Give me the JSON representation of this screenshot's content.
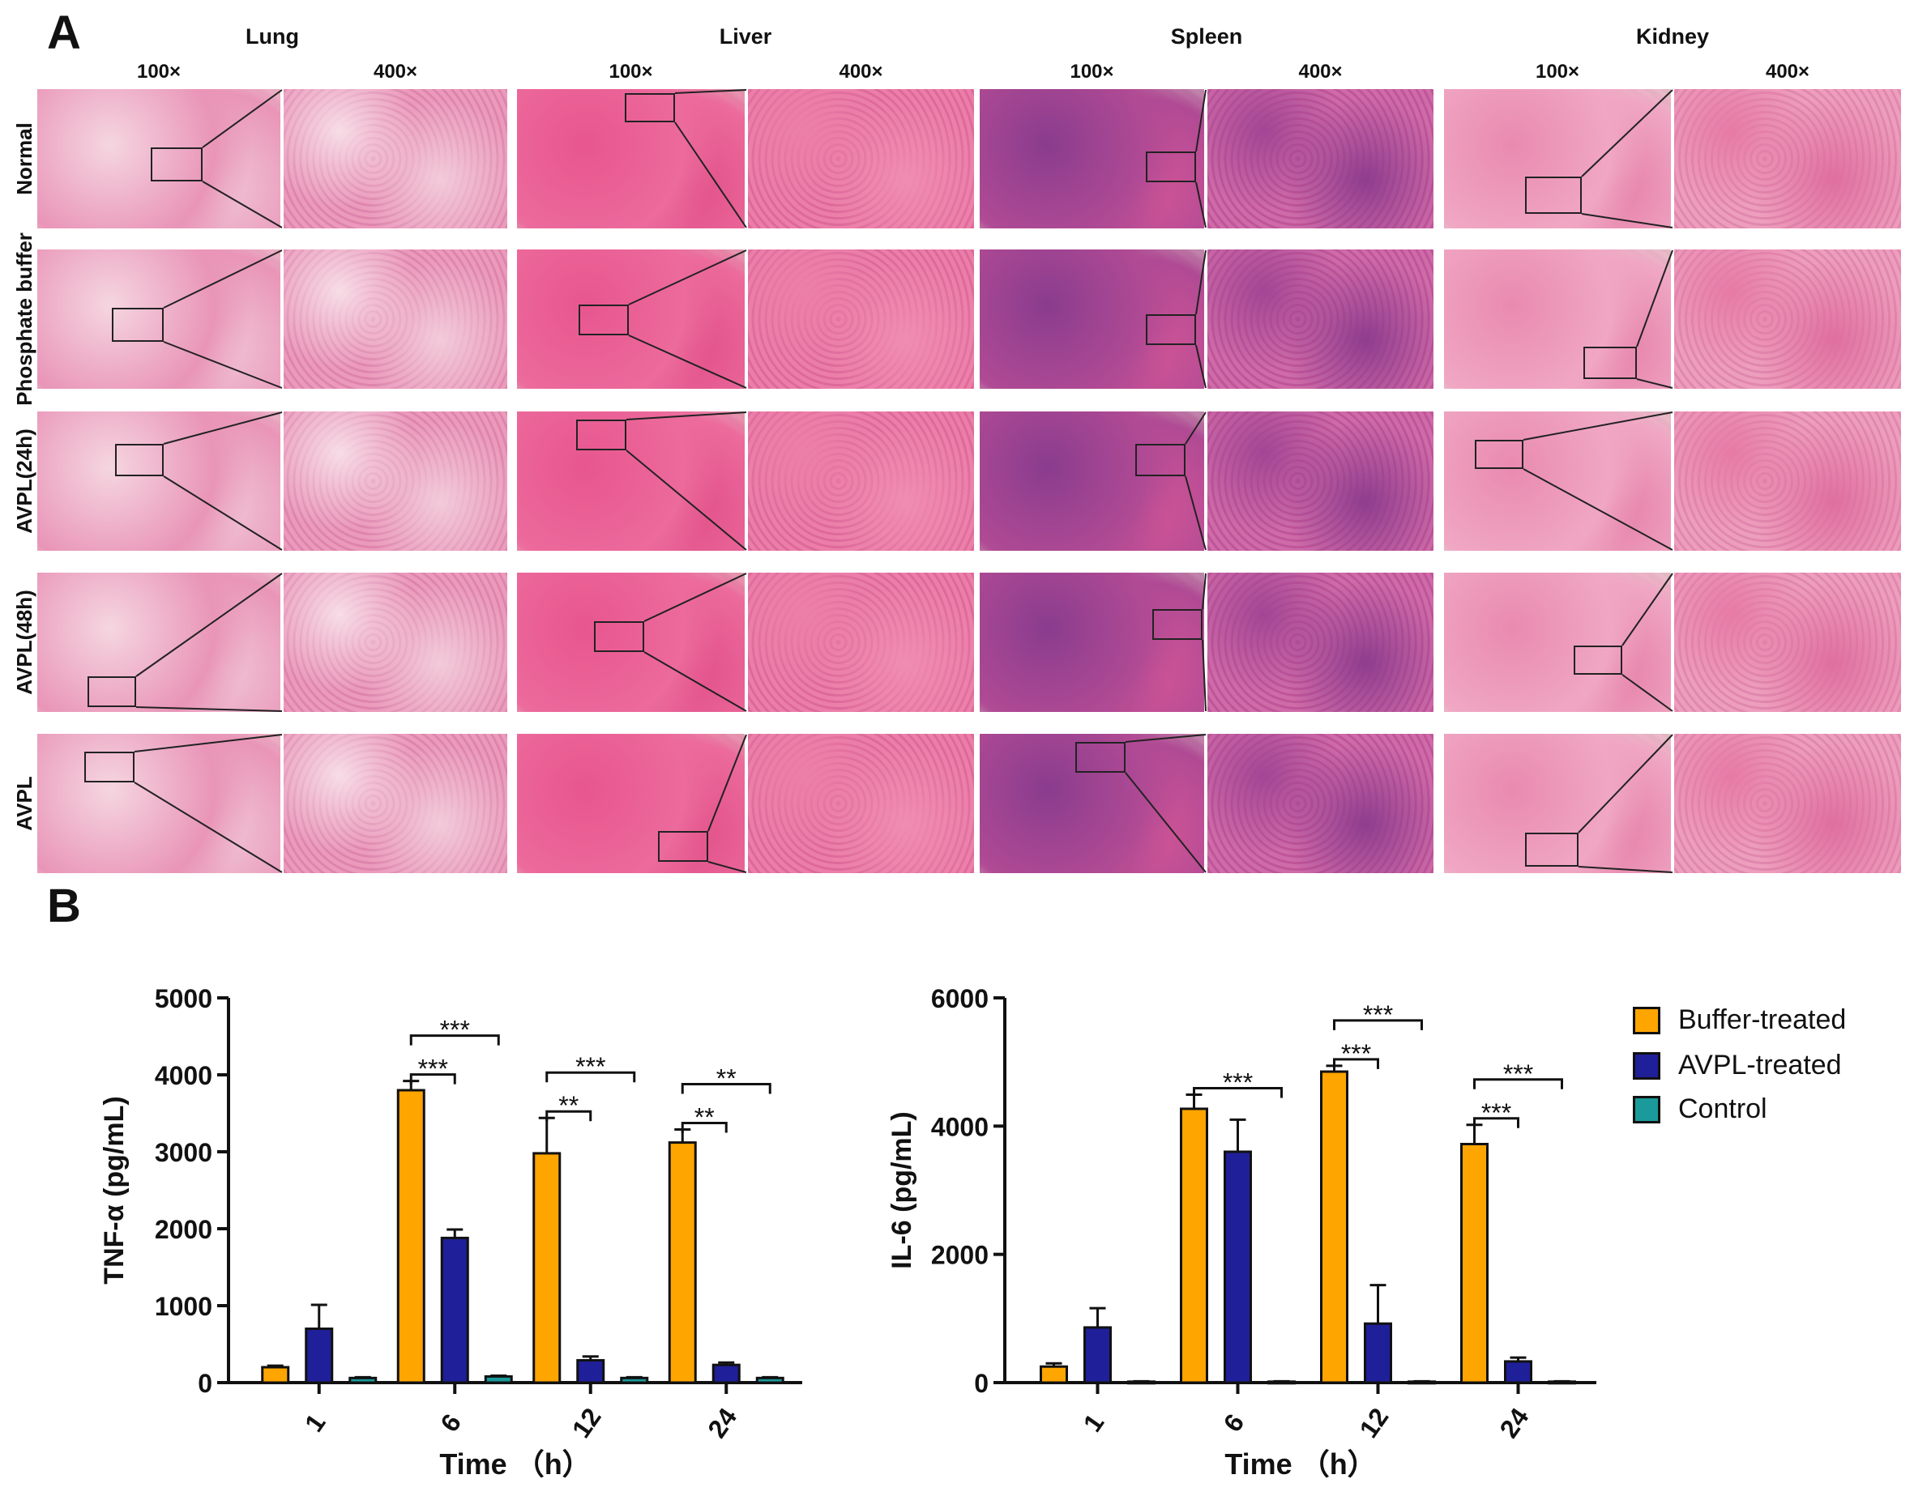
{
  "panel_a": {
    "letter": "A",
    "organs": [
      {
        "name": "Lung",
        "mag_low": "100×",
        "mag_high": "400×"
      },
      {
        "name": "Liver",
        "mag_low": "100×",
        "mag_high": "400×"
      },
      {
        "name": "Spleen",
        "mag_low": "100×",
        "mag_high": "400×"
      },
      {
        "name": "Kidney",
        "mag_low": "100×",
        "mag_high": "400×"
      }
    ],
    "rows": [
      "Normal",
      "Phosphate buffer",
      "AVPL(24h)",
      "AVPL(48h)",
      "AVPL"
    ]
  },
  "panel_b": {
    "letter": "B",
    "legend": [
      {
        "name": "Buffer-treated",
        "color": "#FFA500"
      },
      {
        "name": "AVPL-treated",
        "color": "#1F1F99"
      },
      {
        "name": "Control",
        "color": "#1A9A9A"
      }
    ]
  },
  "chart_data": [
    {
      "type": "bar",
      "ylabel": "TNF-α (pg/mL)",
      "xlabel": "Time （h）",
      "categories": [
        "1",
        "6",
        "12",
        "24"
      ],
      "ylim": [
        0,
        5000
      ],
      "yticks": [
        "0",
        "1000",
        "2000",
        "3000",
        "4000",
        "5000"
      ],
      "series": [
        {
          "name": "Buffer-treated",
          "values": [
            200,
            3800,
            2980,
            3120
          ],
          "errors": [
            20,
            120,
            460,
            170
          ]
        },
        {
          "name": "AVPL-treated",
          "values": [
            700,
            1880,
            290,
            230
          ],
          "errors": [
            310,
            110,
            50,
            30
          ]
        },
        {
          "name": "Control",
          "values": [
            60,
            80,
            60,
            60
          ],
          "errors": [
            10,
            10,
            10,
            10
          ]
        }
      ],
      "significance": [
        {
          "category": "6",
          "from": 0,
          "to": 1,
          "label": "***",
          "level": 1
        },
        {
          "category": "6",
          "from": 0,
          "to": 2,
          "label": "***",
          "level": 2
        },
        {
          "category": "12",
          "from": 0,
          "to": 1,
          "label": "**",
          "level": 1
        },
        {
          "category": "12",
          "from": 0,
          "to": 2,
          "label": "***",
          "level": 2
        },
        {
          "category": "24",
          "from": 0,
          "to": 1,
          "label": "**",
          "level": 1
        },
        {
          "category": "24",
          "from": 0,
          "to": 2,
          "label": "**",
          "level": 2
        }
      ]
    },
    {
      "type": "bar",
      "ylabel": "IL-6 (pg/mL)",
      "xlabel": "Time （h）",
      "categories": [
        "1",
        "6",
        "12",
        "24"
      ],
      "ylim": [
        0,
        6000
      ],
      "yticks": [
        "0",
        "2000",
        "4000",
        "6000"
      ],
      "series": [
        {
          "name": "Buffer-treated",
          "values": [
            250,
            4270,
            4850,
            3720
          ],
          "errors": [
            50,
            220,
            90,
            300
          ]
        },
        {
          "name": "AVPL-treated",
          "values": [
            860,
            3600,
            920,
            330
          ],
          "errors": [
            300,
            500,
            600,
            60
          ]
        },
        {
          "name": "Control",
          "values": [
            15,
            15,
            15,
            15
          ],
          "errors": [
            5,
            5,
            5,
            5
          ]
        }
      ],
      "significance": [
        {
          "category": "6",
          "from": 0,
          "to": 2,
          "label": "***",
          "level": 1
        },
        {
          "category": "12",
          "from": 0,
          "to": 1,
          "label": "***",
          "level": 1
        },
        {
          "category": "12",
          "from": 0,
          "to": 2,
          "label": "***",
          "level": 2
        },
        {
          "category": "24",
          "from": 0,
          "to": 1,
          "label": "***",
          "level": 1
        },
        {
          "category": "24",
          "from": 0,
          "to": 2,
          "label": "***",
          "level": 2
        }
      ]
    }
  ]
}
